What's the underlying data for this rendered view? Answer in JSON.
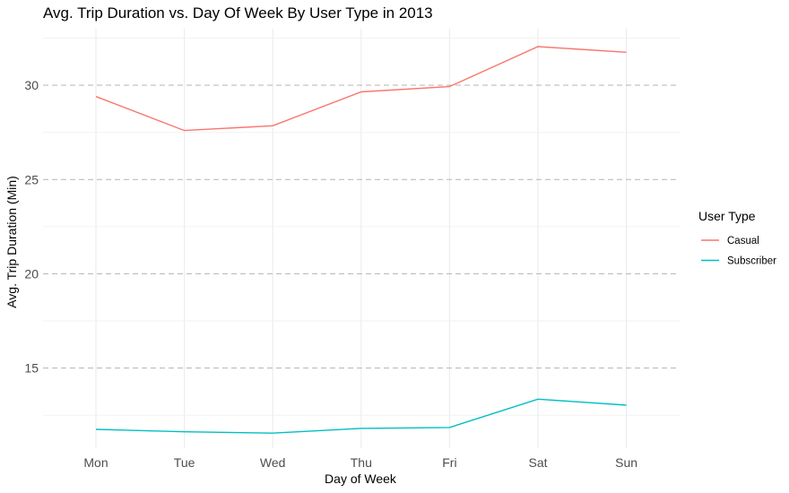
{
  "chart_data": {
    "type": "line",
    "title": "Avg. Trip Duration vs. Day Of Week By User Type in 2013",
    "xlabel": "Day of Week",
    "ylabel": "Avg. Trip Duration (Min)",
    "categories": [
      "Mon",
      "Tue",
      "Wed",
      "Thu",
      "Fri",
      "Sat",
      "Sun"
    ],
    "series": [
      {
        "name": "Casual",
        "color": "#F8766D",
        "values": [
          29.4,
          27.6,
          27.85,
          29.65,
          29.93,
          32.05,
          31.75
        ]
      },
      {
        "name": "Subscriber",
        "color": "#00BFC4",
        "values": [
          11.75,
          11.62,
          11.55,
          11.8,
          11.85,
          13.35,
          13.03
        ]
      }
    ],
    "y_ticks": [
      15,
      20,
      25,
      30
    ],
    "ylim": [
      10.75,
      33
    ],
    "legend": {
      "title": "User Type",
      "position": "right"
    },
    "grid": {
      "major_horizontal": "dashed",
      "vertical": true,
      "minor_horizontal": true
    }
  }
}
